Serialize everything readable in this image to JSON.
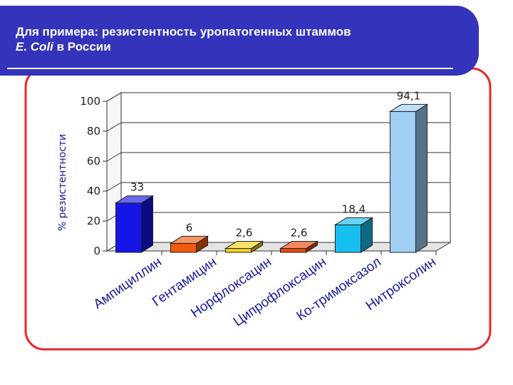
{
  "slide": {
    "title_line1": "Для примера: резистентность уропатогенных штаммов",
    "title_line2_italic": "E. Coli",
    "title_line2_rest": " в России"
  },
  "colors": {
    "header": "#3333bb",
    "frame": "#e8262e"
  },
  "chart_data": {
    "type": "bar",
    "categories": [
      "Ампициллин",
      "Гентамицин",
      "Норфлоксацин",
      "Ципрофлоксацин",
      "Ко-тримоксазол",
      "Нитроксолин"
    ],
    "values": [
      33,
      6,
      2.6,
      2.6,
      18.4,
      94.1
    ],
    "data_labels": [
      "33",
      "6",
      "2,6",
      "2,6",
      "18,4",
      "94,1"
    ],
    "bar_colors": [
      "#1515e8",
      "#f05a0a",
      "#f2d21e",
      "#e84a0a",
      "#17bff0",
      "#9fd0f4"
    ],
    "ylabel": "% резистентности",
    "ylim": [
      0,
      100
    ],
    "yticks": [
      0,
      20,
      40,
      60,
      80,
      100
    ],
    "grid": true,
    "style": "3d"
  }
}
